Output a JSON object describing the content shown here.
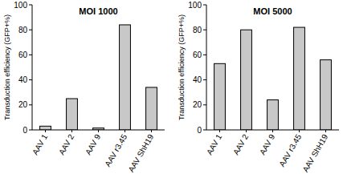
{
  "chart_data": [
    {
      "type": "bar",
      "title": "MOI 1000",
      "categories": [
        "AAV 1",
        "AAV 2",
        "AAV 9",
        "AAV r3.45",
        "AAV ShH19"
      ],
      "values": [
        3,
        25,
        1.5,
        84,
        34
      ],
      "color": "#c8c8c8",
      "y_label": "Transduction efficiency (GFP+%)",
      "ylim": [
        0,
        100
      ],
      "yticks": [
        0,
        20,
        40,
        60,
        80,
        100
      ],
      "grid": false
    },
    {
      "type": "bar",
      "title": "MOI 5000",
      "categories": [
        "AAV 1",
        "AAV 2",
        "AAV 9",
        "AAV r3.45",
        "AAV ShH19"
      ],
      "values": [
        53,
        80,
        24,
        82,
        56
      ],
      "color": "#c8c8c8",
      "y_label": "Transduction efficiency (GFP+%)",
      "ylim": [
        0,
        100
      ],
      "yticks": [
        0,
        20,
        40,
        60,
        80,
        100
      ],
      "grid": false
    }
  ]
}
